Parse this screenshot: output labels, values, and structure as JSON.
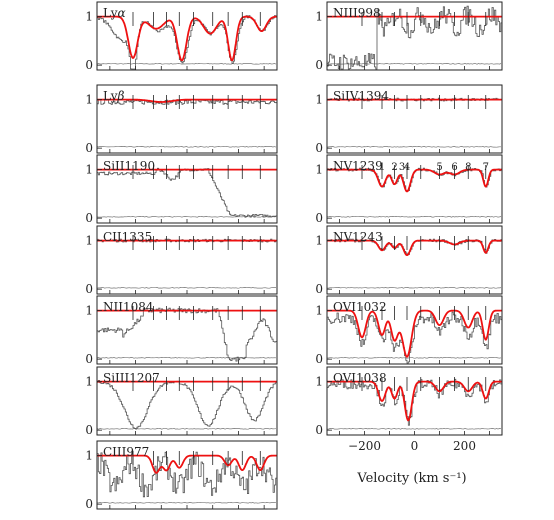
{
  "chart_data": {
    "type": "line",
    "xlabel": "Velocity (km s⁻¹)",
    "xlim": [
      -350,
      350
    ],
    "ylim": [
      -0.1,
      1.3
    ],
    "x_ticks": [
      "−200",
      "0",
      "200"
    ],
    "y_ticks": [
      "0",
      "1"
    ],
    "colors": {
      "model": "#ee1111",
      "data": "#555555",
      "frame": "#222222"
    },
    "component_velocities": [
      -210,
      -130,
      -80,
      -30,
      25,
      100,
      160,
      215,
      285
    ],
    "component_labels": [
      "1",
      "2",
      "3",
      "4",
      "5",
      "6",
      "8",
      "7"
    ],
    "left_panels": [
      {
        "label": "Lyα",
        "italic": true
      },
      {
        "label": "Lyβ",
        "italic": true
      },
      {
        "label": "SiII1190"
      },
      {
        "label": "CII1335"
      },
      {
        "label": "NII1084"
      },
      {
        "label": "SiIII1207"
      },
      {
        "label": "CIII977"
      }
    ],
    "right_panels": [
      {
        "label": "NIII998"
      },
      {
        "label": "SiIV1394"
      },
      {
        "label": "NV1239",
        "component_numbers": true
      },
      {
        "label": "NV1243"
      },
      {
        "label": "OVI1032"
      },
      {
        "label": "OVI1038"
      }
    ]
  }
}
